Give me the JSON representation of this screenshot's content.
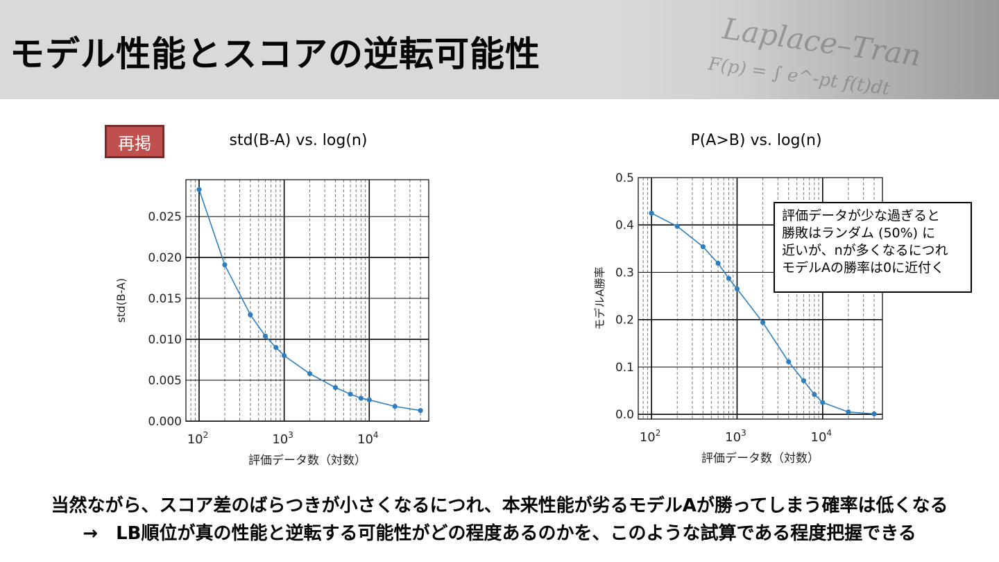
{
  "header": {
    "title": "モデル性能とスコアの逆転可能性"
  },
  "badge": {
    "label": "再掲"
  },
  "plots": {
    "left_title": "std(B-A) vs. log(n)",
    "right_title": "P(A>B) vs. log(n)"
  },
  "callout": {
    "lines": [
      "評価データが少な過ぎると",
      "勝敗はランダム (50%) に",
      "近いが、nが多くなるにつれ",
      "モデルAの勝率は0に近付く"
    ]
  },
  "bottom": {
    "line1": "当然ながら、スコア差のばらつきが小さくなるにつれ、本来性能が劣るモデルAが勝ってしまう確率は低くなる",
    "line2": "→　LB順位が真の性能と逆転する可能性がどの程度あるのかを、このような試算である程度把握できる"
  },
  "chart_data": [
    {
      "type": "line",
      "title": "std(B-A) vs. log(n)",
      "xlabel": "評価データ数（対数）",
      "ylabel": "std(B-A)",
      "xscale": "log",
      "xlim": [
        70,
        50000
      ],
      "ylim": [
        0,
        0.0295
      ],
      "xticks": [
        100,
        1000,
        10000
      ],
      "xtick_labels": [
        "10^2",
        "10^3",
        "10^4"
      ],
      "yticks": [
        0,
        0.005,
        0.01,
        0.015,
        0.02,
        0.025
      ],
      "ytick_labels": [
        "0.000",
        "0.005",
        "0.010",
        "0.015",
        "0.020",
        "0.025"
      ],
      "grid": true,
      "color": "#2e7ebf",
      "x": [
        100,
        200,
        400,
        600,
        800,
        1000,
        2000,
        4000,
        6000,
        8000,
        10000,
        20000,
        40000
      ],
      "y": [
        0.0283,
        0.0191,
        0.013,
        0.0104,
        0.009,
        0.008,
        0.0058,
        0.0041,
        0.0033,
        0.0028,
        0.0026,
        0.0018,
        0.0013
      ]
    },
    {
      "type": "line",
      "title": "P(A>B) vs. log(n)",
      "xlabel": "評価データ数（対数）",
      "ylabel": "モデルA勝率",
      "xscale": "log",
      "xlim": [
        70,
        50000
      ],
      "ylim": [
        -0.01,
        0.5
      ],
      "xticks": [
        100,
        1000,
        10000
      ],
      "xtick_labels": [
        "10^2",
        "10^3",
        "10^4"
      ],
      "yticks": [
        0,
        0.1,
        0.2,
        0.3,
        0.4,
        0.5
      ],
      "ytick_labels": [
        "0.0",
        "0.1",
        "0.2",
        "0.3",
        "0.4",
        "0.5"
      ],
      "grid": true,
      "color": "#2e7ebf",
      "x": [
        100,
        200,
        400,
        600,
        800,
        1000,
        2000,
        4000,
        6000,
        8000,
        10000,
        20000,
        40000
      ],
      "y": [
        0.425,
        0.397,
        0.354,
        0.319,
        0.287,
        0.265,
        0.194,
        0.111,
        0.071,
        0.042,
        0.025,
        0.005,
        0.001
      ]
    }
  ]
}
